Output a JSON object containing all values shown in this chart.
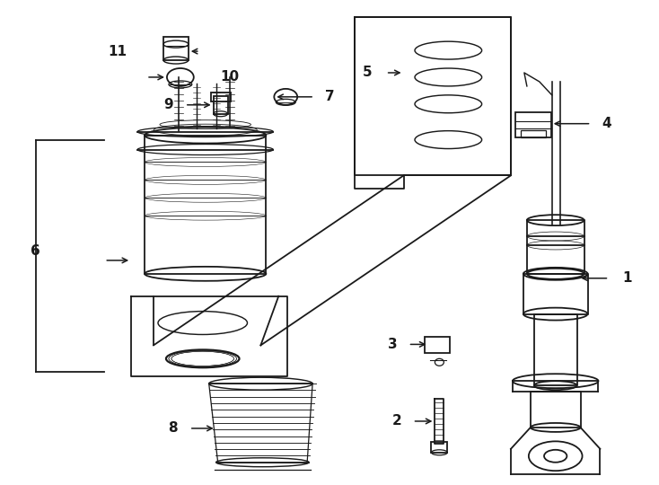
{
  "bg_color": "#ffffff",
  "line_color": "#1a1a1a",
  "line_width": 1.3,
  "label_fontsize": 11,
  "fig_width": 7.34,
  "fig_height": 5.4
}
